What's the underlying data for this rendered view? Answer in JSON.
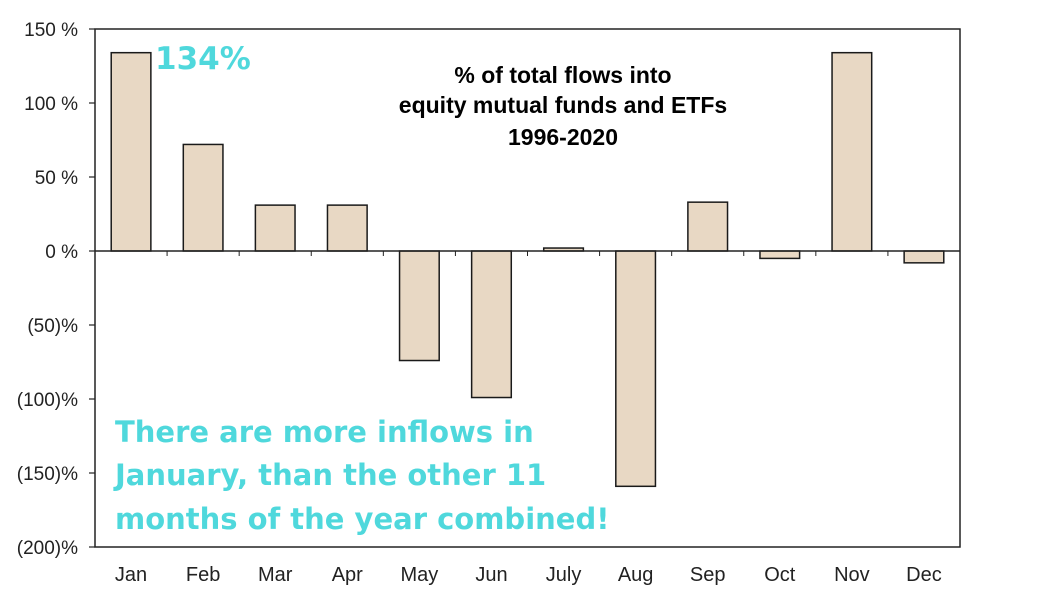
{
  "chart_data": {
    "type": "bar",
    "title_lines": [
      "% of total flows into",
      "equity mutual funds and ETFs",
      "1996-2020"
    ],
    "categories": [
      "Jan",
      "Feb",
      "Mar",
      "Apr",
      "May",
      "Jun",
      "July",
      "Aug",
      "Sep",
      "Oct",
      "Nov",
      "Dec"
    ],
    "values": [
      134,
      72,
      31,
      31,
      -74,
      -99,
      2,
      -159,
      33,
      -5,
      134,
      -8
    ],
    "ylim": [
      -200,
      150
    ],
    "yticks": [
      150,
      100,
      50,
      0,
      -50,
      -100,
      -150,
      -200
    ],
    "ytick_labels": [
      "150 %",
      "100 %",
      "50 %",
      "0 %",
      "(50)%",
      "(100)%",
      "(150)%",
      "(200)%"
    ],
    "bar_color": "#e8d8c4",
    "bar_edge_color": "#1a1a1a",
    "grid": false,
    "legend": "none",
    "annotations": {
      "peak_label": "134%",
      "note_lines": [
        "There are more inflows in",
        "January, than the other 11",
        "months of the year combined!"
      ],
      "note_color": "#4fd8dc"
    }
  }
}
